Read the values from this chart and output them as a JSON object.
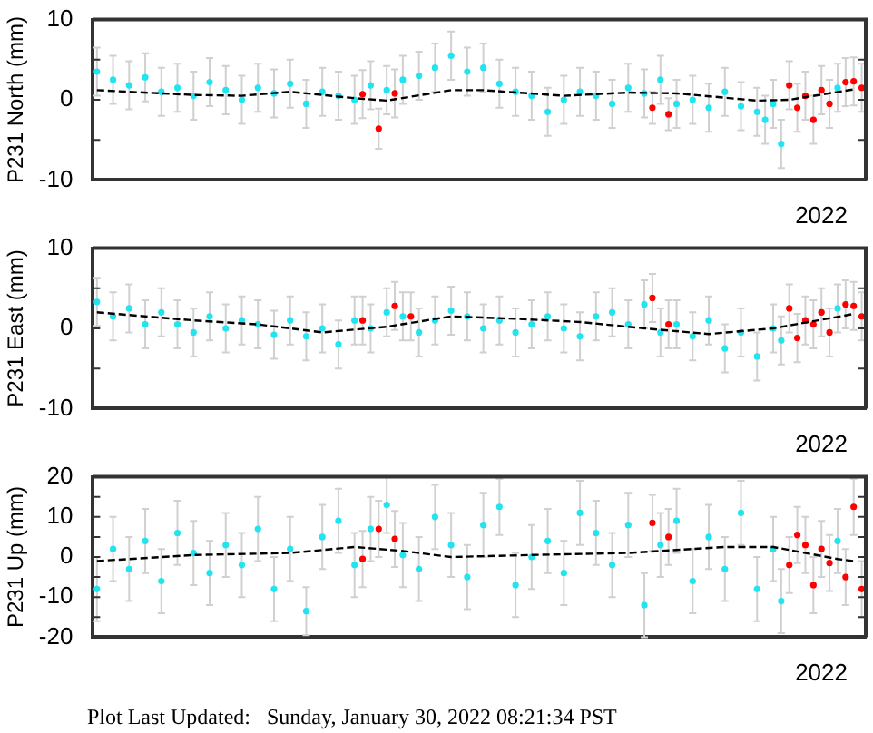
{
  "chart_data": [
    {
      "type": "scatter",
      "ylabel": "P231 North (mm)",
      "marker": "circle",
      "annotations": [
        "2022"
      ],
      "ylim": [
        -10,
        10
      ],
      "yticks": [
        -10,
        {
          "value": -5,
          "label": null
        },
        0,
        {
          "value": 5,
          "label": null
        },
        10
      ],
      "categories": [
        null,
        null,
        null,
        null,
        null,
        null,
        null,
        null,
        null,
        null,
        null,
        null,
        null,
        null,
        null,
        null,
        null,
        null,
        null,
        null,
        null,
        null,
        null,
        null,
        null,
        null,
        null,
        null,
        null,
        null,
        null,
        null,
        null,
        null,
        null,
        null,
        null,
        null,
        null,
        null,
        null,
        null,
        null,
        null,
        null,
        null,
        null,
        null,
        null,
        null,
        null,
        null,
        null,
        null,
        null,
        null,
        null,
        null,
        null,
        null,
        null,
        null,
        null,
        null,
        null,
        null,
        null,
        null,
        null,
        null,
        null,
        null,
        null,
        null,
        null,
        null,
        null,
        null,
        null,
        null,
        null,
        null,
        null,
        null,
        null,
        null,
        null,
        null,
        null,
        null,
        null,
        null,
        null,
        null,
        null,
        null
      ],
      "series": [
        {
          "type": "scatter",
          "color": "#22e4f0",
          "values": [
            3.5,
            null,
            2.5,
            null,
            1.8,
            null,
            2.8,
            null,
            1.0,
            null,
            1.5,
            null,
            0.5,
            null,
            2.2,
            null,
            1.2,
            null,
            0.0,
            null,
            1.5,
            null,
            0.8,
            null,
            2.0,
            null,
            -0.5,
            null,
            1.0,
            null,
            0.5,
            null,
            0.0,
            null,
            1.8,
            null,
            1.2,
            null,
            2.5,
            null,
            3.0,
            null,
            4.0,
            null,
            5.5,
            null,
            3.5,
            null,
            4.0,
            null,
            2.0,
            null,
            1.0,
            null,
            0.5,
            null,
            -1.5,
            null,
            0.0,
            null,
            1.0,
            null,
            0.5,
            null,
            -0.5,
            null,
            1.5,
            null,
            0.8,
            null,
            2.5,
            null,
            -0.5,
            null,
            0.0,
            null,
            -1.0,
            null,
            1.0,
            null,
            -0.8,
            null,
            -1.5,
            -2.5,
            -0.5,
            -5.5,
            null,
            null,
            null,
            null,
            null,
            null,
            1.5,
            null,
            null,
            null
          ],
          "errors": [
            3,
            null,
            3,
            null,
            3,
            null,
            3,
            null,
            3,
            null,
            3,
            null,
            3,
            null,
            3,
            null,
            3,
            null,
            3,
            null,
            3,
            null,
            3,
            null,
            3,
            null,
            3,
            null,
            3,
            null,
            3,
            null,
            3,
            null,
            3,
            null,
            3,
            null,
            3,
            null,
            3,
            null,
            3,
            null,
            3,
            null,
            3,
            null,
            3,
            null,
            3,
            null,
            3,
            null,
            3,
            null,
            3,
            null,
            3,
            null,
            3,
            null,
            3,
            null,
            3,
            null,
            3,
            null,
            3,
            null,
            3,
            null,
            3,
            null,
            3,
            null,
            3,
            null,
            3,
            null,
            3,
            null,
            3,
            3,
            3,
            3,
            null,
            null,
            null,
            null,
            null,
            null,
            3,
            null,
            null,
            null
          ]
        },
        {
          "type": "scatter",
          "color": "#ff0000",
          "values": [
            null,
            null,
            null,
            null,
            null,
            null,
            null,
            null,
            null,
            null,
            null,
            null,
            null,
            null,
            null,
            null,
            null,
            null,
            null,
            null,
            null,
            null,
            null,
            null,
            null,
            null,
            null,
            null,
            null,
            null,
            null,
            null,
            null,
            0.7,
            null,
            -3.6,
            null,
            0.8,
            null,
            null,
            null,
            null,
            null,
            null,
            null,
            null,
            null,
            null,
            null,
            null,
            null,
            null,
            null,
            null,
            null,
            null,
            null,
            null,
            null,
            null,
            null,
            null,
            null,
            null,
            null,
            null,
            null,
            null,
            null,
            -1.0,
            null,
            -1.8,
            null,
            null,
            null,
            null,
            null,
            null,
            null,
            null,
            null,
            null,
            null,
            null,
            null,
            null,
            1.8,
            -1.0,
            0.5,
            -2.5,
            1.2,
            -0.5,
            null,
            2.2,
            2.3,
            1.5
          ],
          "errors": [
            null,
            null,
            null,
            null,
            null,
            null,
            null,
            null,
            null,
            null,
            null,
            null,
            null,
            null,
            null,
            null,
            null,
            null,
            null,
            null,
            null,
            null,
            null,
            null,
            null,
            null,
            null,
            null,
            null,
            null,
            null,
            null,
            null,
            3,
            null,
            2.5,
            null,
            3,
            null,
            null,
            null,
            null,
            null,
            null,
            null,
            null,
            null,
            null,
            null,
            null,
            null,
            null,
            null,
            null,
            null,
            null,
            null,
            null,
            null,
            null,
            null,
            null,
            null,
            null,
            null,
            null,
            null,
            null,
            null,
            2,
            null,
            2,
            null,
            null,
            null,
            null,
            null,
            null,
            null,
            null,
            null,
            null,
            null,
            null,
            null,
            null,
            3,
            3,
            3,
            3,
            3,
            3,
            null,
            3,
            3,
            3
          ]
        },
        {
          "type": "line",
          "color": "#000000",
          "line_style": "dashed",
          "marker": "none",
          "values": [
            1.2,
            null,
            null,
            null,
            null,
            null,
            null,
            null,
            null,
            null,
            null,
            null,
            0.6,
            null,
            null,
            null,
            null,
            null,
            0.5,
            null,
            null,
            null,
            null,
            null,
            1.0,
            null,
            null,
            null,
            null,
            null,
            null,
            null,
            0.2,
            null,
            null,
            null,
            -0.1,
            null,
            null,
            null,
            null,
            null,
            null,
            null,
            1.2,
            null,
            null,
            null,
            1.2,
            null,
            null,
            null,
            null,
            null,
            null,
            null,
            null,
            null,
            0.5,
            null,
            null,
            null,
            null,
            null,
            null,
            null,
            0.9,
            null,
            null,
            null,
            null,
            null,
            0.8,
            null,
            null,
            null,
            null,
            null,
            null,
            null,
            null,
            null,
            -0.1,
            null,
            null,
            null,
            0.0,
            null,
            null,
            null,
            null,
            null,
            null,
            null,
            1.3,
            null
          ]
        }
      ]
    },
    {
      "type": "scatter",
      "ylabel": "P231 East (mm)",
      "marker": "circle",
      "annotations": [
        "2022"
      ],
      "ylim": [
        -10,
        10
      ],
      "yticks": [
        -10,
        {
          "value": -5,
          "label": null
        },
        0,
        {
          "value": 5,
          "label": null
        },
        10
      ],
      "categories": [
        null,
        null,
        null,
        null,
        null,
        null,
        null,
        null,
        null,
        null,
        null,
        null,
        null,
        null,
        null,
        null,
        null,
        null,
        null,
        null,
        null,
        null,
        null,
        null,
        null,
        null,
        null,
        null,
        null,
        null,
        null,
        null,
        null,
        null,
        null,
        null,
        null,
        null,
        null,
        null,
        null,
        null,
        null,
        null,
        null,
        null,
        null,
        null,
        null,
        null,
        null,
        null,
        null,
        null,
        null,
        null,
        null,
        null,
        null,
        null,
        null,
        null,
        null,
        null,
        null,
        null,
        null,
        null,
        null,
        null,
        null,
        null,
        null,
        null,
        null,
        null,
        null,
        null,
        null,
        null,
        null,
        null,
        null,
        null,
        null,
        null,
        null,
        null,
        null,
        null,
        null,
        null,
        null,
        null,
        null,
        null
      ],
      "series": [
        {
          "type": "scatter",
          "color": "#22e4f0",
          "values": [
            3.3,
            null,
            1.5,
            null,
            2.5,
            null,
            0.5,
            null,
            2.0,
            null,
            0.5,
            null,
            -0.5,
            null,
            1.5,
            null,
            0.0,
            null,
            1.0,
            null,
            0.5,
            null,
            -0.8,
            null,
            1.0,
            null,
            -1.0,
            null,
            0.0,
            null,
            -2.0,
            null,
            1.0,
            null,
            0.0,
            null,
            2.0,
            null,
            1.5,
            null,
            -0.5,
            null,
            1.0,
            null,
            2.2,
            null,
            1.5,
            null,
            0.0,
            null,
            1.0,
            null,
            -0.5,
            null,
            0.5,
            null,
            1.5,
            null,
            0.0,
            null,
            -1.0,
            null,
            1.5,
            null,
            2.0,
            null,
            0.5,
            null,
            3.0,
            null,
            -0.5,
            null,
            0.5,
            null,
            -1.0,
            null,
            1.0,
            null,
            -2.5,
            null,
            -0.5,
            null,
            -3.5,
            null,
            0.0,
            -1.5,
            null,
            null,
            null,
            null,
            null,
            null,
            2.5,
            null,
            null,
            null
          ],
          "errors": [
            3,
            null,
            3,
            null,
            3,
            null,
            3,
            null,
            3,
            null,
            3,
            null,
            3,
            null,
            3,
            null,
            3,
            null,
            3,
            null,
            3,
            null,
            3,
            null,
            3,
            null,
            3,
            null,
            3,
            null,
            3,
            null,
            3,
            null,
            3,
            null,
            3,
            null,
            3,
            null,
            3,
            null,
            3,
            null,
            3,
            null,
            3,
            null,
            3,
            null,
            3,
            null,
            3,
            null,
            3,
            null,
            3,
            null,
            3,
            null,
            3,
            null,
            3,
            null,
            3,
            null,
            3,
            null,
            3,
            null,
            3,
            null,
            3,
            null,
            3,
            null,
            3,
            null,
            3,
            null,
            3,
            null,
            3,
            null,
            3,
            3,
            null,
            null,
            null,
            null,
            null,
            null,
            3,
            null,
            null,
            null
          ]
        },
        {
          "type": "scatter",
          "color": "#ff0000",
          "values": [
            null,
            null,
            null,
            null,
            null,
            null,
            null,
            null,
            null,
            null,
            null,
            null,
            null,
            null,
            null,
            null,
            null,
            null,
            null,
            null,
            null,
            null,
            null,
            null,
            null,
            null,
            null,
            null,
            null,
            null,
            null,
            null,
            null,
            1.0,
            null,
            null,
            null,
            2.8,
            null,
            1.5,
            null,
            null,
            null,
            null,
            null,
            null,
            null,
            null,
            null,
            null,
            null,
            null,
            null,
            null,
            null,
            null,
            null,
            null,
            null,
            null,
            null,
            null,
            null,
            null,
            null,
            null,
            null,
            null,
            null,
            3.8,
            null,
            0.5,
            null,
            null,
            null,
            null,
            null,
            null,
            null,
            null,
            null,
            null,
            null,
            null,
            null,
            null,
            2.5,
            -1.2,
            1.0,
            0.5,
            2.0,
            -0.5,
            null,
            3.0,
            2.8,
            1.5
          ],
          "errors": [
            null,
            null,
            null,
            null,
            null,
            null,
            null,
            null,
            null,
            null,
            null,
            null,
            null,
            null,
            null,
            null,
            null,
            null,
            null,
            null,
            null,
            null,
            null,
            null,
            null,
            null,
            null,
            null,
            null,
            null,
            null,
            null,
            null,
            3,
            null,
            null,
            null,
            3,
            null,
            3,
            null,
            null,
            null,
            null,
            null,
            null,
            null,
            null,
            null,
            null,
            null,
            null,
            null,
            null,
            null,
            null,
            null,
            null,
            null,
            null,
            null,
            null,
            null,
            null,
            null,
            null,
            null,
            null,
            null,
            3,
            null,
            3,
            null,
            null,
            null,
            null,
            null,
            null,
            null,
            null,
            null,
            null,
            null,
            null,
            null,
            null,
            3,
            3,
            3,
            3,
            3,
            3,
            null,
            3,
            3,
            3
          ]
        },
        {
          "type": "line",
          "color": "#000000",
          "line_style": "dashed",
          "marker": "none",
          "values": [
            2.0,
            null,
            null,
            null,
            null,
            null,
            null,
            null,
            null,
            null,
            null,
            null,
            1.0,
            null,
            null,
            null,
            null,
            null,
            null,
            null,
            0.5,
            null,
            null,
            null,
            null,
            null,
            null,
            null,
            -0.5,
            null,
            null,
            null,
            null,
            null,
            null,
            null,
            0.2,
            null,
            null,
            null,
            null,
            null,
            null,
            null,
            1.5,
            null,
            null,
            null,
            null,
            null,
            null,
            null,
            1.2,
            null,
            null,
            null,
            null,
            null,
            null,
            null,
            0.8,
            null,
            null,
            null,
            null,
            null,
            null,
            null,
            0.0,
            null,
            null,
            null,
            null,
            null,
            null,
            null,
            -0.7,
            null,
            null,
            null,
            null,
            null,
            null,
            null,
            0.0,
            null,
            null,
            null,
            null,
            null,
            null,
            null,
            null,
            null,
            1.8,
            null
          ]
        }
      ]
    },
    {
      "type": "scatter",
      "ylabel": "P231 Up (mm)",
      "marker": "circle",
      "annotations": [
        "2022",
        "Plot Last Updated:   Sunday, January 30, 2022 08:21:34 PST"
      ],
      "ylim": [
        -20,
        20
      ],
      "yticks": [
        -20,
        {
          "value": -15,
          "label": null
        },
        -10,
        {
          "value": -5,
          "label": null
        },
        0,
        {
          "value": 5,
          "label": null
        },
        10,
        {
          "value": 15,
          "label": null
        },
        20
      ],
      "categories": [
        null,
        null,
        null,
        null,
        null,
        null,
        null,
        null,
        null,
        null,
        null,
        null,
        null,
        null,
        null,
        null,
        null,
        null,
        null,
        null,
        null,
        null,
        null,
        null,
        null,
        null,
        null,
        null,
        null,
        null,
        null,
        null,
        null,
        null,
        null,
        null,
        null,
        null,
        null,
        null,
        null,
        null,
        null,
        null,
        null,
        null,
        null,
        null,
        null,
        null,
        null,
        null,
        null,
        null,
        null,
        null,
        null,
        null,
        null,
        null,
        null,
        null,
        null,
        null,
        null,
        null,
        null,
        null,
        null,
        null,
        null,
        null,
        null,
        null,
        null,
        null,
        null,
        null,
        null,
        null,
        null,
        null,
        null,
        null,
        null,
        null,
        null,
        null,
        null,
        null,
        null,
        null,
        null,
        null,
        null,
        null
      ],
      "series": [
        {
          "type": "scatter",
          "color": "#22e4f0",
          "values": [
            -8.0,
            null,
            2.0,
            null,
            -3.0,
            null,
            4.0,
            null,
            -6.0,
            null,
            6.0,
            null,
            1.0,
            null,
            -4.0,
            null,
            3.0,
            null,
            -2.0,
            null,
            7.0,
            null,
            -8.0,
            null,
            2.0,
            null,
            -13.5,
            null,
            5.0,
            null,
            9.0,
            null,
            -2.0,
            null,
            7.0,
            null,
            13.0,
            null,
            0.5,
            null,
            -3.0,
            null,
            10.0,
            null,
            3.0,
            null,
            -5.0,
            null,
            8.0,
            null,
            12.5,
            null,
            -7.0,
            null,
            0.0,
            null,
            4.0,
            null,
            -4.0,
            null,
            11.0,
            null,
            6.0,
            null,
            -2.0,
            null,
            8.0,
            null,
            -12.0,
            null,
            3.0,
            null,
            9.0,
            null,
            -6.0,
            null,
            5.0,
            null,
            -3.0,
            null,
            11.0,
            null,
            -8.0,
            null,
            2.0,
            -11.0,
            null,
            null,
            null,
            null,
            null,
            null,
            4.0,
            null,
            null,
            null
          ],
          "errors": [
            8,
            null,
            8,
            null,
            8,
            null,
            8,
            null,
            8,
            null,
            8,
            null,
            8,
            null,
            8,
            null,
            8,
            null,
            8,
            null,
            8,
            null,
            8,
            null,
            8,
            null,
            6,
            null,
            8,
            null,
            8,
            null,
            8,
            null,
            8,
            null,
            7,
            null,
            8,
            null,
            8,
            null,
            8,
            null,
            8,
            null,
            8,
            null,
            8,
            null,
            7,
            null,
            8,
            null,
            8,
            null,
            8,
            null,
            8,
            null,
            8,
            null,
            8,
            null,
            8,
            null,
            8,
            null,
            8,
            null,
            8,
            null,
            8,
            null,
            8,
            null,
            8,
            null,
            8,
            null,
            8,
            null,
            8,
            null,
            8,
            8,
            null,
            null,
            null,
            null,
            null,
            null,
            8,
            null,
            null,
            null
          ]
        },
        {
          "type": "scatter",
          "color": "#ff0000",
          "values": [
            null,
            null,
            null,
            null,
            null,
            null,
            null,
            null,
            null,
            null,
            null,
            null,
            null,
            null,
            null,
            null,
            null,
            null,
            null,
            null,
            null,
            null,
            null,
            null,
            null,
            null,
            null,
            null,
            null,
            null,
            null,
            null,
            null,
            -0.5,
            null,
            7.0,
            null,
            4.5,
            null,
            null,
            null,
            null,
            null,
            null,
            null,
            null,
            null,
            null,
            null,
            null,
            null,
            null,
            null,
            null,
            null,
            null,
            null,
            null,
            null,
            null,
            null,
            null,
            null,
            null,
            null,
            null,
            null,
            null,
            null,
            8.5,
            null,
            5.0,
            null,
            null,
            null,
            null,
            null,
            null,
            null,
            null,
            null,
            null,
            null,
            null,
            null,
            null,
            -2.0,
            5.5,
            3.0,
            -7.0,
            2.0,
            -1.5,
            null,
            -5.0,
            12.5,
            -8.0
          ],
          "errors": [
            null,
            null,
            null,
            null,
            null,
            null,
            null,
            null,
            null,
            null,
            null,
            null,
            null,
            null,
            null,
            null,
            null,
            null,
            null,
            null,
            null,
            null,
            null,
            null,
            null,
            null,
            null,
            null,
            null,
            null,
            null,
            null,
            null,
            7,
            null,
            7,
            null,
            7,
            null,
            null,
            null,
            null,
            null,
            null,
            null,
            null,
            null,
            null,
            null,
            null,
            null,
            null,
            null,
            null,
            null,
            null,
            null,
            null,
            null,
            null,
            null,
            null,
            null,
            null,
            null,
            null,
            null,
            null,
            null,
            7,
            null,
            7,
            null,
            null,
            null,
            null,
            null,
            null,
            null,
            null,
            null,
            null,
            null,
            null,
            null,
            null,
            7,
            7,
            7,
            7,
            7,
            7,
            null,
            7,
            7,
            7
          ]
        },
        {
          "type": "line",
          "color": "#000000",
          "line_style": "dashed",
          "marker": "none",
          "values": [
            -1.0,
            null,
            null,
            null,
            null,
            null,
            null,
            null,
            null,
            null,
            null,
            null,
            0.5,
            null,
            null,
            null,
            null,
            null,
            null,
            null,
            null,
            null,
            null,
            null,
            1.0,
            null,
            null,
            null,
            null,
            null,
            null,
            null,
            2.5,
            null,
            null,
            null,
            null,
            null,
            1.5,
            null,
            null,
            null,
            null,
            null,
            0.0,
            null,
            null,
            null,
            null,
            null,
            null,
            null,
            null,
            null,
            0.5,
            null,
            null,
            null,
            null,
            null,
            null,
            null,
            null,
            null,
            null,
            null,
            1.0,
            null,
            null,
            null,
            null,
            null,
            null,
            null,
            null,
            null,
            null,
            null,
            2.5,
            null,
            null,
            null,
            null,
            null,
            2.5,
            null,
            null,
            null,
            null,
            null,
            null,
            null,
            -0.5,
            null,
            -1.0,
            null
          ]
        }
      ]
    }
  ]
}
